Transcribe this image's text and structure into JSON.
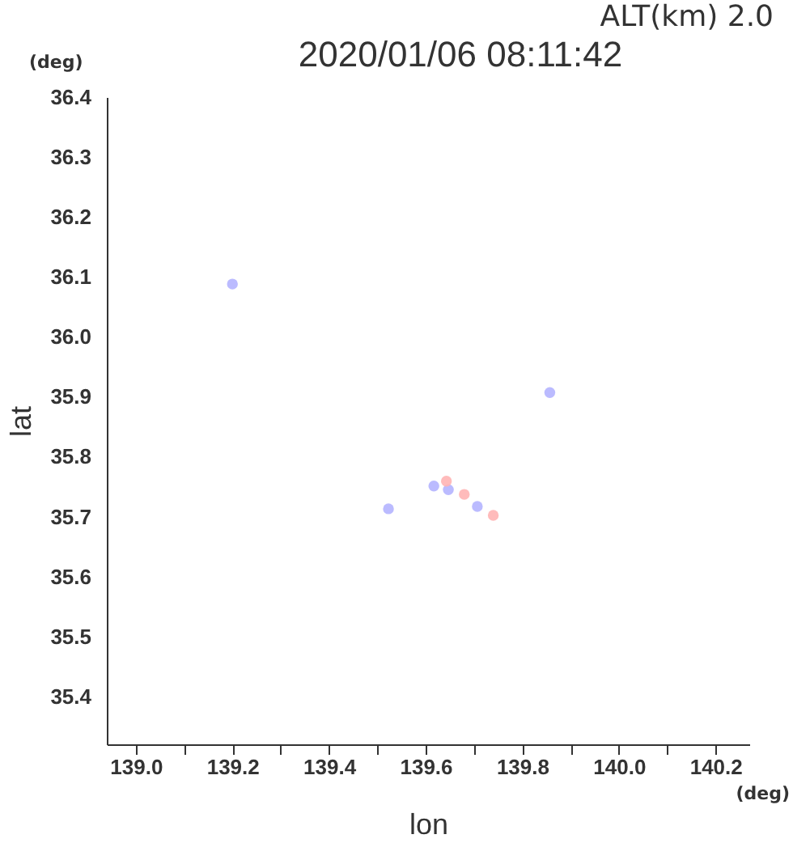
{
  "chart_data": {
    "type": "scatter",
    "title": "2020/01/06 08:11:42",
    "xlabel": "lon",
    "ylabel": "lat",
    "annotations": [
      "ALT(km) 2.0",
      "(deg)",
      "(deg)"
    ],
    "series": [
      {
        "color": "#b4b4ff",
        "x": [
          139.2,
          139.857,
          139.523,
          139.617,
          139.647,
          139.707
        ],
        "values": [
          36.088,
          35.907,
          35.713,
          35.751,
          35.745,
          35.717
        ]
      },
      {
        "color": "#ffb4b4",
        "x": [
          139.643,
          139.68,
          139.74
        ],
        "values": [
          35.759,
          35.737,
          35.702
        ]
      }
    ],
    "xlim": [
      138.94,
      140.27
    ],
    "ylim": [
      35.32,
      36.4
    ],
    "xticks": [
      {
        "value": 139.0,
        "label": "139.0"
      },
      {
        "value": 139.1,
        "label": null
      },
      {
        "value": 139.2,
        "label": "139.2"
      },
      {
        "value": 139.3,
        "label": null
      },
      {
        "value": 139.4,
        "label": "139.4"
      },
      {
        "value": 139.5,
        "label": null
      },
      {
        "value": 139.6,
        "label": "139.6"
      },
      {
        "value": 139.7,
        "label": null
      },
      {
        "value": 139.8,
        "label": "139.8"
      },
      {
        "value": 139.9,
        "label": null
      },
      {
        "value": 140.0,
        "label": "140.0"
      },
      {
        "value": 140.1,
        "label": null
      },
      {
        "value": 140.2,
        "label": "140.2"
      }
    ],
    "yticks": [
      35.4,
      35.5,
      35.6,
      35.7,
      35.8,
      35.9,
      {
        "value": 36.0,
        "label": "36.0"
      },
      36.1,
      36.2,
      36.3,
      36.4
    ],
    "grid": false,
    "marker": "circle"
  }
}
